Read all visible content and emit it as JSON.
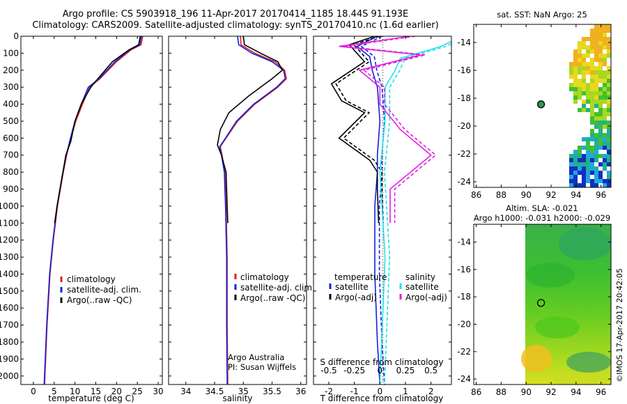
{
  "header": {
    "line1": "Argo profile: CS 5903918_196 11-Apr-2017 20170414_1185 18.44S 91.193E",
    "line2": "Climatology: CARS2009. Satellite-adjusted climatology: synTS_20170410.nc (1.6d earlier)"
  },
  "colors": {
    "climatology": "#e0201c",
    "satellite": "#1020e0",
    "argo": "#000000",
    "sal_satellite": "#20e0e8",
    "sal_argo": "#e020e0"
  },
  "chart_data": [
    {
      "id": "temperature",
      "type": "line",
      "xlabel": "temperature (deg C)",
      "ylabel": "",
      "xlim": [
        -3,
        31
      ],
      "ylim": [
        2050,
        0
      ],
      "xticks": [
        "0",
        "5",
        "10",
        "15",
        "20",
        "25",
        "30"
      ],
      "yticks": [
        "0",
        "100",
        "200",
        "300",
        "400",
        "500",
        "600",
        "700",
        "800",
        "900",
        "1000",
        "1100",
        "1200",
        "1300",
        "1400",
        "1500",
        "1600",
        "1700",
        "1800",
        "1900",
        "2000"
      ],
      "legend": [
        "climatology",
        "satellite-adj. clim.",
        "Argo(..raw -QC)"
      ],
      "series": [
        {
          "name": "climatology",
          "color": "#e0201c",
          "x": [
            26.3,
            25.9,
            23.5,
            20.0,
            16.0,
            13.5,
            11.8,
            10.2,
            9.0,
            8.0,
            7.2,
            6.5,
            5.8,
            5.3,
            4.8,
            4.0,
            3.3,
            2.7
          ],
          "y": [
            0,
            50,
            80,
            150,
            250,
            300,
            400,
            500,
            600,
            700,
            800,
            900,
            1000,
            1100,
            1200,
            1400,
            1700,
            2050
          ]
        },
        {
          "name": "satellite-adj. clim.",
          "color": "#1020e0",
          "x": [
            26.0,
            25.6,
            23.2,
            19.6,
            15.8,
            13.2,
            11.5,
            10.0,
            8.9,
            7.9,
            7.1,
            6.4,
            5.7,
            5.2,
            4.7,
            3.9,
            3.2,
            2.6
          ],
          "y": [
            0,
            50,
            80,
            150,
            250,
            300,
            400,
            500,
            600,
            700,
            800,
            900,
            1000,
            1100,
            1200,
            1400,
            1700,
            2050
          ]
        },
        {
          "name": "Argo(..raw -QC)",
          "color": "#000000",
          "x": [
            25.7,
            25.3,
            23.0,
            19.0,
            15.5,
            13.8,
            11.5,
            10.0,
            9.0,
            7.8,
            7.1,
            6.4,
            5.7,
            5.1
          ],
          "y": [
            0,
            50,
            80,
            150,
            250,
            300,
            400,
            500,
            620,
            700,
            800,
            900,
            1000,
            1100
          ]
        }
      ]
    },
    {
      "id": "salinity",
      "type": "line",
      "xlabel": "salinity",
      "ylabel": "",
      "xlim": [
        33.7,
        36.1
      ],
      "ylim": [
        2050,
        0
      ],
      "xticks": [
        "34",
        "34.5",
        "35",
        "35.5",
        "36"
      ],
      "legend": [
        "climatology",
        "satellite-adj. clim.",
        "Argo(..raw -QC)"
      ],
      "annotation": [
        "Argo Australia",
        "PI: Susan Wijffels"
      ],
      "series": [
        {
          "name": "climatology",
          "color": "#e0201c",
          "x": [
            34.95,
            34.96,
            35.2,
            35.55,
            35.72,
            35.75,
            35.6,
            35.2,
            34.9,
            34.7,
            34.6,
            34.63,
            34.68,
            34.7,
            34.72,
            34.72,
            34.73
          ],
          "y": [
            0,
            50,
            100,
            150,
            200,
            250,
            300,
            400,
            500,
            600,
            650,
            700,
            800,
            1000,
            1300,
            1700,
            2050
          ]
        },
        {
          "name": "satellite-adj. clim.",
          "color": "#1020e0",
          "x": [
            34.9,
            34.92,
            35.15,
            35.5,
            35.7,
            35.73,
            35.58,
            35.18,
            34.88,
            34.69,
            34.59,
            34.62,
            34.67,
            34.69,
            34.71,
            34.71,
            34.72
          ],
          "y": [
            0,
            50,
            100,
            150,
            200,
            250,
            300,
            400,
            500,
            600,
            650,
            700,
            800,
            1000,
            1300,
            1700,
            2050
          ]
        },
        {
          "name": "Argo(..raw -QC)",
          "color": "#000000",
          "x": [
            35.0,
            35.02,
            35.3,
            35.6,
            35.68,
            35.5,
            35.1,
            34.75,
            34.6,
            34.55,
            34.62,
            34.7,
            34.72,
            34.73
          ],
          "y": [
            0,
            50,
            100,
            150,
            200,
            250,
            350,
            450,
            550,
            640,
            700,
            800,
            1000,
            1100
          ]
        }
      ]
    },
    {
      "id": "differences",
      "type": "line",
      "xlabel": "T difference from climatology",
      "xlabel_top": "S difference from climatology",
      "xlim": [
        -2.6,
        2.8
      ],
      "ylim": [
        2050,
        0
      ],
      "xticks": [
        "-2",
        "-1",
        "0",
        "1",
        "2"
      ],
      "xticks_top": [
        "-0.5",
        "-0.25",
        "0",
        "0.25",
        "0.5"
      ],
      "legend_temperature_title": "temperature",
      "legend_salinity_title": "salinity",
      "legend": [
        "satellite",
        "Argo(-adj)",
        "satellite",
        "Argo(-adj)"
      ],
      "series": [
        {
          "name": "T satellite",
          "color": "#1020e0",
          "x": [
            -0.1,
            -0.9,
            -0.4,
            -0.3,
            -0.1,
            0.0,
            -0.1,
            -0.1,
            -0.2,
            -0.2,
            -0.1,
            0.0
          ],
          "y": [
            0,
            60,
            120,
            200,
            300,
            500,
            700,
            800,
            1000,
            1400,
            1800,
            2050
          ]
        },
        {
          "name": "T Argo(-adj)",
          "color": "#000000",
          "x": [
            -0.2,
            -1.2,
            -0.6,
            -1.9,
            -1.5,
            -0.6,
            -1.6,
            -0.4,
            -0.1,
            -0.1,
            -0.05
          ],
          "y": [
            0,
            50,
            150,
            280,
            380,
            450,
            600,
            730,
            800,
            900,
            1100
          ]
        },
        {
          "name": "S satellite",
          "color": "#20e0e8",
          "x": [
            0.8,
            0.6,
            0.2,
            0.15,
            0.05,
            0.05,
            0.0,
            0.05,
            0.0
          ],
          "y": [
            0,
            60,
            130,
            200,
            300,
            500,
            800,
            1300,
            2050
          ]
        },
        {
          "name": "S Argo(-adj)",
          "color": "#e020e0",
          "x": [
            0.3,
            -0.4,
            0.4,
            -0.2,
            0.0,
            0.0,
            0.2,
            0.5,
            0.3,
            0.1,
            0.1
          ],
          "y": [
            0,
            60,
            110,
            200,
            300,
            400,
            550,
            700,
            800,
            900,
            1100
          ]
        }
      ]
    },
    {
      "id": "sst_map",
      "type": "heatmap",
      "title": "sat. SST: NaN Argo: 25",
      "xlim": [
        85.8,
        96.8
      ],
      "ylim": [
        -24.4,
        -12.7
      ],
      "xticks": [
        "86",
        "88",
        "90",
        "92",
        "94",
        "96"
      ],
      "yticks": [
        "-14",
        "-16",
        "-18",
        "-20",
        "-22",
        "-24"
      ],
      "argo_point": {
        "lon": 91.193,
        "lat": -18.44
      }
    },
    {
      "id": "sla_map",
      "type": "heatmap",
      "title": "Altim. SLA: -0.021",
      "subtitle": "Argo h1000: -0.031 h2000: -0.029",
      "xlim": [
        85.8,
        96.8
      ],
      "ylim": [
        -24.4,
        -12.7
      ],
      "xticks": [
        "86",
        "88",
        "90",
        "92",
        "94",
        "96"
      ],
      "yticks": [
        "-14",
        "-16",
        "-18",
        "-20",
        "-22",
        "-24"
      ],
      "argo_point": {
        "lon": 91.193,
        "lat": -18.44
      }
    }
  ],
  "credit": "©IMOS 17-Apr-2017 20:42:05"
}
